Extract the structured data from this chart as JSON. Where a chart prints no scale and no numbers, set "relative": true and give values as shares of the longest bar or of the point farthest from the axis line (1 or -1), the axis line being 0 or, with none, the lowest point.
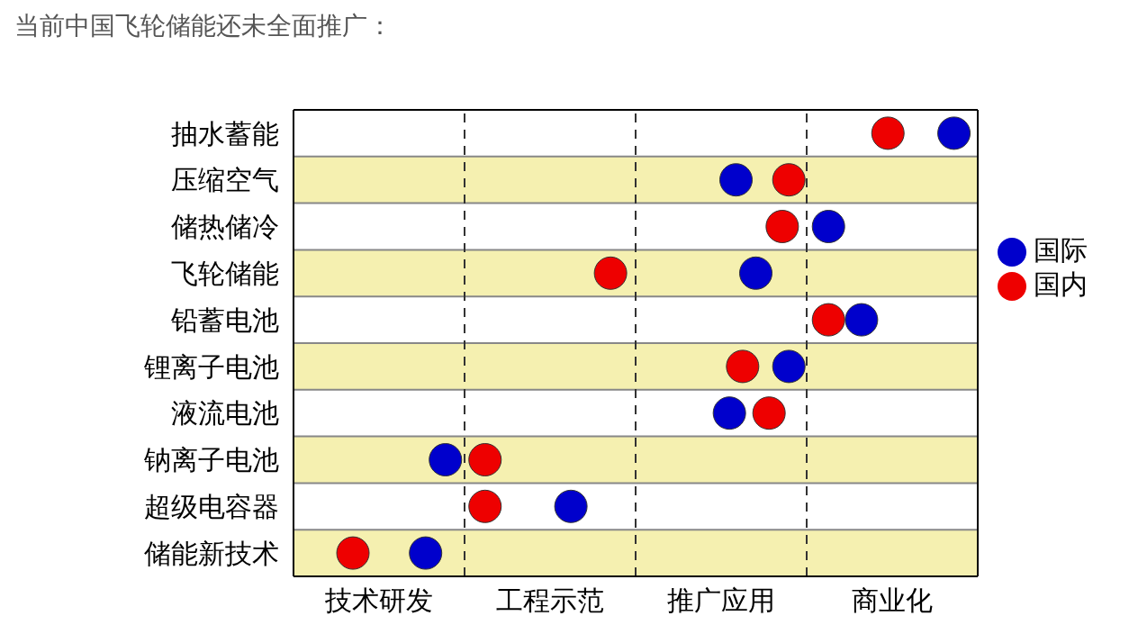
{
  "chart_data": {
    "type": "scatter",
    "title": "当前中国飞轮储能还未全面推广：",
    "orientation": "horizontal",
    "relative": true,
    "categories": [
      "抽水蓄能",
      "压缩空气",
      "储热储冷",
      "飞轮储能",
      "铅蓄电池",
      "锂离子电池",
      "液流电池",
      "钠离子电池",
      "超级电容器",
      "储能新技术"
    ],
    "series": [
      {
        "name": "国际",
        "color": "#0000cc",
        "values": [
          1,
          0.67,
          0.81,
          0.7,
          0.86,
          0.75,
          0.66,
          0.23,
          0.42,
          0.2
        ]
      },
      {
        "name": "国内",
        "color": "#ee0000",
        "values": [
          0.9,
          0.75,
          0.74,
          0.48,
          0.81,
          0.68,
          0.72,
          0.29,
          0.29,
          0.09
        ]
      }
    ],
    "annotations": [
      "技术研发",
      "工程示范",
      "推广应用",
      "商业化"
    ],
    "ref_lines": [
      {
        "axis": "x",
        "value": 0.259,
        "line_style": "dashed",
        "color": "#333333"
      },
      {
        "axis": "x",
        "value": 0.518,
        "line_style": "dashed",
        "color": "#333333"
      },
      {
        "axis": "x",
        "value": 0.777,
        "line_style": "dashed",
        "color": "#333333"
      }
    ],
    "bands": [
      {
        "axis": "y",
        "from": "压缩空气",
        "to": "压缩空气",
        "color": "#f5f0b0"
      },
      {
        "axis": "y",
        "from": "飞轮储能",
        "to": "飞轮储能",
        "color": "#f5f0b0"
      },
      {
        "axis": "y",
        "from": "锂离子电池",
        "to": "锂离子电池",
        "color": "#f5f0b0"
      },
      {
        "axis": "y",
        "from": "钠离子电池",
        "to": "钠离子电池",
        "color": "#f5f0b0"
      },
      {
        "axis": "y",
        "from": "储能新技术",
        "to": "储能新技术",
        "color": "#f5f0b0"
      }
    ],
    "legend": "right",
    "marker": "circle",
    "grid": "y"
  }
}
